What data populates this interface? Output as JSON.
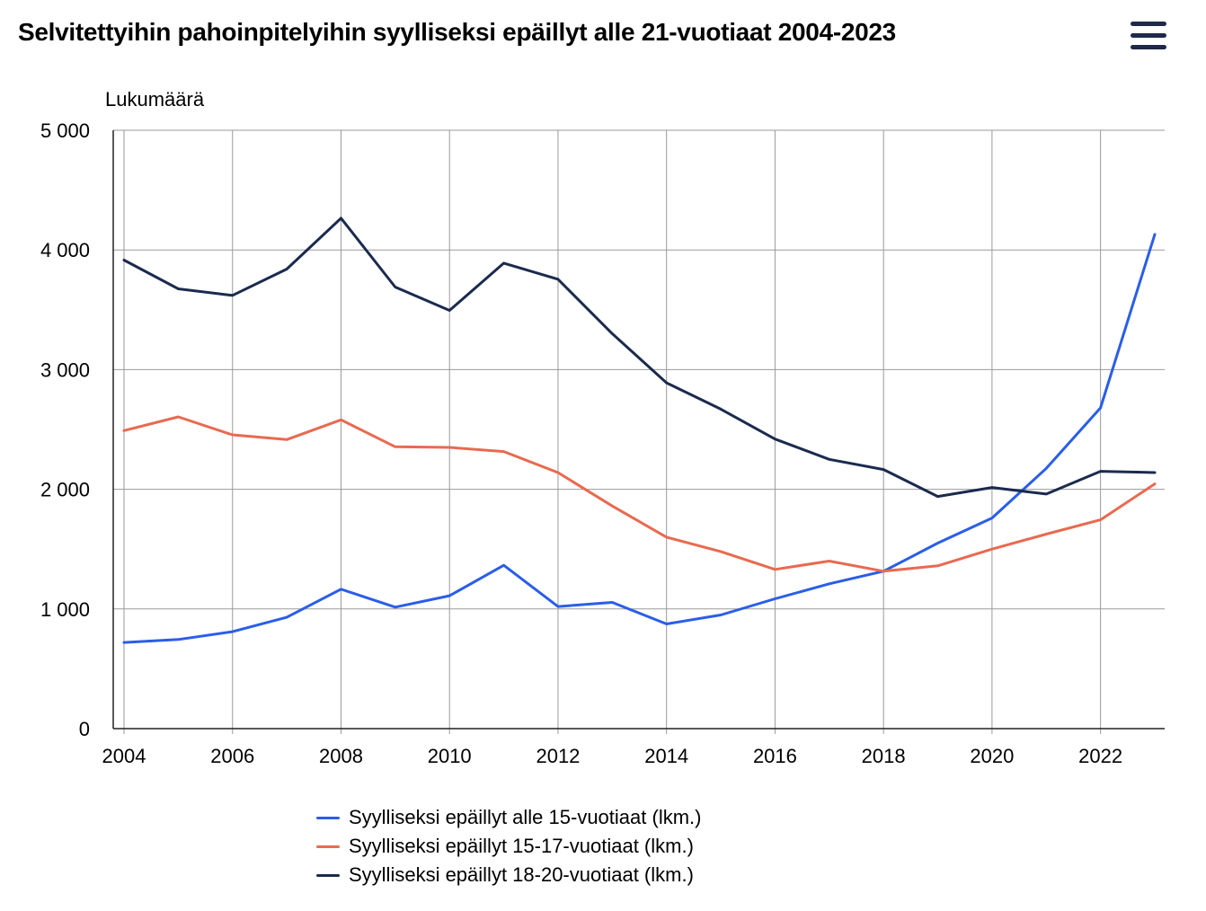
{
  "title": "Selvitettyihin pahoinpitelyihin syylliseksi epäillyt alle 21-vuotiaat 2004-2023",
  "menu_icon": "hamburger-menu-icon",
  "chart_data": {
    "type": "line",
    "title": "Selvitettyihin pahoinpitelyihin syylliseksi epäillyt alle 21-vuotiaat 2004-2023",
    "ylabel": "Lukumäärä",
    "xlabel": "",
    "x": [
      2004,
      2005,
      2006,
      2007,
      2008,
      2009,
      2010,
      2011,
      2012,
      2013,
      2014,
      2015,
      2016,
      2017,
      2018,
      2019,
      2020,
      2021,
      2022,
      2023
    ],
    "xlim": [
      2004,
      2023
    ],
    "ylim": [
      0,
      5000
    ],
    "x_ticks": [
      "2004",
      "2006",
      "2008",
      "2010",
      "2012",
      "2014",
      "2016",
      "2018",
      "2020",
      "2022"
    ],
    "y_ticks": [
      "0",
      "1 000",
      "2 000",
      "3 000",
      "4 000",
      "5 000"
    ],
    "grid": true,
    "legend_position": "bottom",
    "series": [
      {
        "name": "Syylliseksi epäillyt alle 15-vuotiaat (lkm.)",
        "color": "#2a5ee8",
        "values": [
          720,
          745,
          810,
          930,
          1165,
          1015,
          1110,
          1365,
          1020,
          1055,
          875,
          950,
          1085,
          1210,
          1315,
          1550,
          1760,
          2175,
          2680,
          4130
        ]
      },
      {
        "name": "Syylliseksi epäillyt 15-17-vuotiaat (lkm.)",
        "color": "#e86a50",
        "values": [
          2490,
          2605,
          2455,
          2415,
          2580,
          2355,
          2350,
          2315,
          2140,
          1860,
          1600,
          1480,
          1330,
          1400,
          1315,
          1360,
          1500,
          1625,
          1745,
          2045
        ]
      },
      {
        "name": "Syylliseksi epäillyt 18-20-vuotiaat (lkm.)",
        "color": "#1b2a4e",
        "values": [
          3915,
          3675,
          3620,
          3840,
          4265,
          3690,
          3495,
          3890,
          3755,
          3300,
          2890,
          2670,
          2420,
          2250,
          2165,
          1940,
          2015,
          1960,
          2150,
          2140
        ]
      }
    ]
  }
}
